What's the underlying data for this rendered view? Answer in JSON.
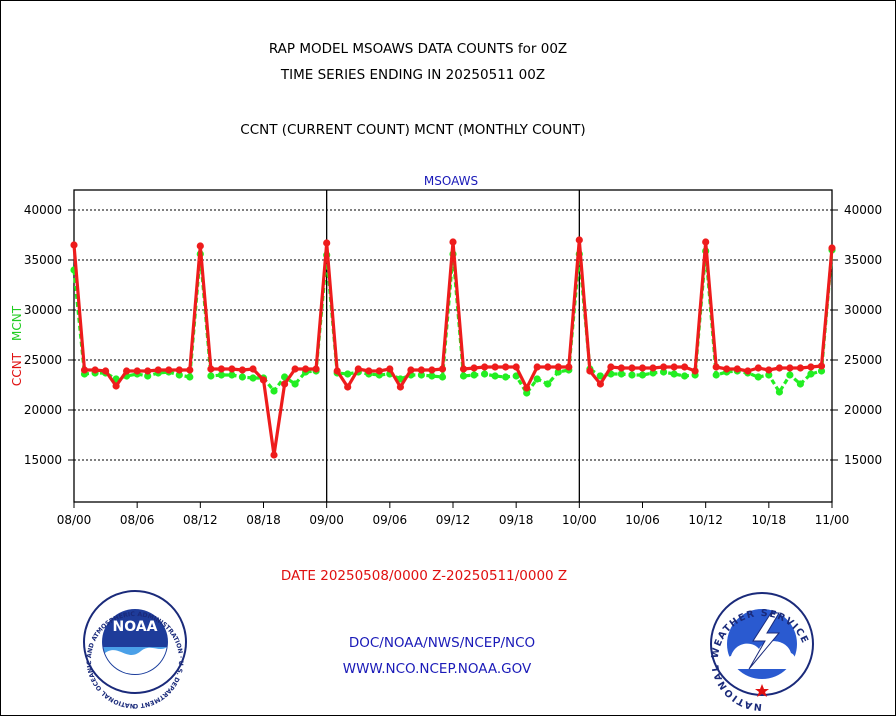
{
  "header": {
    "line1": "RAP MODEL MSOAWS DATA COUNTS for 00Z",
    "line2": "TIME SERIES ENDING IN 20250511 00Z",
    "line3": "CCNT (CURRENT COUNT) MCNT (MONTHLY COUNT)"
  },
  "footer": {
    "date_range": "DATE 20250508/0000 Z-20250511/0000 Z",
    "org": "DOC/NOAA/NWS/NCEP/NCO",
    "url": "WWW.NCO.NCEP.NOAA.GOV"
  },
  "logos": {
    "left": {
      "text": "NOAA",
      "ring_text": "NATIONAL OCEANIC AND ATMOSPHERIC ADMINISTRATION · U.S. DEPARTMENT OF COMMERCE"
    },
    "right": {
      "ring_text": "NATIONAL WEATHER SERVICE"
    }
  },
  "colors": {
    "ccnt": "#ee1c1c",
    "mcnt": "#22ee22",
    "header_blue": "#1a1ab8",
    "footer_red": "#e01010"
  },
  "chart_data": {
    "type": "line",
    "title": "MSOAWS",
    "ylabel_ccnt": "CCNT",
    "ylabel_mcnt": "MCNT",
    "ylim": [
      10800,
      42000
    ],
    "yticks": [
      15000,
      20000,
      25000,
      30000,
      35000,
      40000
    ],
    "grid_y": true,
    "xlim": [
      0,
      90
    ],
    "xticks": [
      {
        "x": 0,
        "label": "08/00"
      },
      {
        "x": 6,
        "label": "08/06"
      },
      {
        "x": 12,
        "label": "08/12"
      },
      {
        "x": 18,
        "label": "08/18"
      },
      {
        "x": 24,
        "label": "09/00"
      },
      {
        "x": 30,
        "label": "09/06"
      },
      {
        "x": 36,
        "label": "09/12"
      },
      {
        "x": 42,
        "label": "09/18"
      },
      {
        "x": 48,
        "label": "10/00"
      },
      {
        "x": 54,
        "label": "10/06"
      },
      {
        "x": 60,
        "label": "10/12"
      },
      {
        "x": 66,
        "label": "10/18"
      },
      {
        "x": 72,
        "label": "11/00"
      }
    ],
    "day_dividers": [
      24,
      48
    ],
    "series": [
      {
        "name": "CCNT",
        "color": "#ee1c1c",
        "x": [
          0,
          1,
          2,
          3,
          4,
          5,
          6,
          7,
          8,
          9,
          10,
          11,
          12,
          13,
          14,
          15,
          16,
          17,
          18,
          19,
          20,
          21,
          22,
          23,
          24,
          25,
          26,
          27,
          28,
          29,
          30,
          31,
          32,
          33,
          34,
          35,
          36,
          37,
          38,
          39,
          40,
          41,
          42,
          43,
          44,
          45,
          46,
          47,
          48,
          49,
          50,
          51,
          52,
          53,
          54,
          55,
          56,
          57,
          58,
          59,
          60,
          61,
          62,
          63,
          64,
          65,
          66,
          67,
          68,
          69,
          70,
          71,
          72
        ],
        "values": [
          36500,
          24000,
          24000,
          23900,
          22400,
          23900,
          23900,
          23900,
          24000,
          24000,
          24000,
          24000,
          36400,
          24100,
          24100,
          24100,
          24000,
          24100,
          23000,
          15500,
          22600,
          24100,
          24100,
          24100,
          36700,
          23900,
          22300,
          24100,
          23900,
          23900,
          24100,
          22300,
          24000,
          24000,
          24000,
          24100,
          36800,
          24100,
          24200,
          24300,
          24300,
          24300,
          24300,
          22200,
          24300,
          24300,
          24300,
          24300,
          37000,
          23900,
          22600,
          24300,
          24200,
          24200,
          24200,
          24200,
          24300,
          24300,
          24300,
          23900,
          36800,
          24300,
          24100,
          24100,
          23900,
          24200,
          24000,
          24200,
          24200,
          24200,
          24300,
          24400,
          36200
        ]
      },
      {
        "name": "MCNT",
        "color": "#22ee22",
        "x": [
          0,
          1,
          2,
          3,
          4,
          5,
          6,
          7,
          8,
          9,
          10,
          11,
          12,
          13,
          14,
          15,
          16,
          17,
          18,
          19,
          20,
          21,
          22,
          23,
          24,
          25,
          26,
          27,
          28,
          29,
          30,
          31,
          32,
          33,
          34,
          35,
          36,
          37,
          38,
          39,
          40,
          41,
          42,
          43,
          44,
          45,
          46,
          47,
          48,
          49,
          50,
          51,
          52,
          53,
          54,
          55,
          56,
          57,
          58,
          59,
          60,
          61,
          62,
          63,
          64,
          65,
          66,
          67,
          68,
          69,
          70,
          71,
          72
        ],
        "values": [
          34000,
          23600,
          23700,
          23700,
          23100,
          23400,
          23600,
          23400,
          23700,
          23800,
          23500,
          23300,
          35600,
          23400,
          23500,
          23500,
          23300,
          23200,
          23200,
          21900,
          23300,
          22600,
          23800,
          23900,
          35500,
          23700,
          23600,
          23800,
          23600,
          23500,
          23600,
          23100,
          23500,
          23500,
          23400,
          23300,
          35600,
          23400,
          23500,
          23600,
          23400,
          23300,
          23400,
          21700,
          23100,
          22600,
          23800,
          24000,
          35600,
          24100,
          23400,
          23600,
          23600,
          23500,
          23500,
          23700,
          23800,
          23600,
          23400,
          23500,
          35900,
          23500,
          23800,
          23900,
          23700,
          23300,
          23500,
          21800,
          23500,
          22600,
          23600,
          23900,
          36000
        ]
      }
    ]
  }
}
